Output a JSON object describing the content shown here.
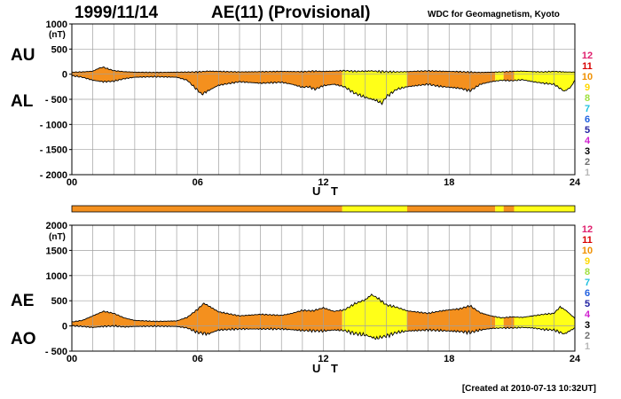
{
  "header": {
    "date": "1999/11/14",
    "title": "AE(11) (Provisional)",
    "institution": "WDC for Geomagnetism, Kyoto"
  },
  "footer": {
    "created": "[Created at 2010-07-13 10:32UT]"
  },
  "legend": [
    {
      "n": "12",
      "color": "#e0206e"
    },
    {
      "n": "11",
      "color": "#d80000"
    },
    {
      "n": "10",
      "color": "#f09000"
    },
    {
      "n": "9",
      "color": "#ffd800"
    },
    {
      "n": "8",
      "color": "#a0e040"
    },
    {
      "n": "7",
      "color": "#20c0e0"
    },
    {
      "n": "6",
      "color": "#2060e0"
    },
    {
      "n": "5",
      "color": "#2020a0"
    },
    {
      "n": "4",
      "color": "#d020d0"
    },
    {
      "n": "3",
      "color": "#000000"
    },
    {
      "n": "2",
      "color": "#707070"
    },
    {
      "n": "1",
      "color": "#b8b8b8"
    }
  ],
  "colors": {
    "orange": "#f4901e",
    "yellow": "#ffff18",
    "grid": "#a0a0a0",
    "line": "#000000"
  },
  "chart_data": [
    {
      "type": "area",
      "labels": {
        "upper": "AU",
        "lower": "AL"
      },
      "ylabel": "(nT)",
      "xlabel": "U T",
      "xlim": [
        0,
        24
      ],
      "ylim": [
        -2000,
        1000
      ],
      "yticks": [
        1000,
        500,
        0,
        -500,
        -1000,
        -1500,
        -2000
      ],
      "ytick_labels": [
        "1000",
        "500",
        "0",
        "- 500",
        "- 1000",
        "- 1500",
        "- 2000"
      ],
      "xticks": [
        0,
        6,
        12,
        18,
        24
      ],
      "xtick_labels": [
        "00",
        "06",
        "12",
        "18",
        "24"
      ],
      "grid": true,
      "series": [
        {
          "key": "AU",
          "x": [
            0,
            0.5,
            1,
            1.3,
            1.5,
            1.7,
            2,
            2.5,
            3,
            4,
            5,
            6,
            6.5,
            7,
            8,
            9,
            10,
            11,
            11.5,
            12,
            12.5,
            13,
            13.5,
            14,
            14.3,
            14.6,
            15,
            15.5,
            16,
            16.5,
            17,
            18,
            18.5,
            19,
            19.5,
            20,
            20.5,
            21,
            21.5,
            22,
            22.5,
            23,
            23.5,
            24
          ],
          "values": [
            40,
            45,
            60,
            120,
            140,
            110,
            70,
            50,
            40,
            35,
            40,
            45,
            60,
            55,
            45,
            50,
            55,
            50,
            60,
            55,
            60,
            70,
            55,
            60,
            65,
            55,
            50,
            45,
            50,
            60,
            65,
            55,
            50,
            40,
            35,
            40,
            45,
            55,
            60,
            50,
            45,
            55,
            45,
            40
          ]
        },
        {
          "key": "AL",
          "x": [
            0,
            0.5,
            1,
            1.5,
            2,
            2.5,
            3,
            4,
            5,
            5.5,
            6,
            6.2,
            6.5,
            7,
            8,
            9,
            10,
            10.5,
            11,
            11.3,
            11.6,
            12,
            12.5,
            13,
            13.5,
            14,
            14.5,
            14.8,
            15,
            15.5,
            16,
            17,
            17.5,
            18,
            18.5,
            19,
            19.5,
            20,
            20.5,
            21,
            21.5,
            22,
            22.5,
            23,
            23.5,
            23.8,
            24
          ],
          "values": [
            -30,
            -60,
            -120,
            -150,
            -140,
            -90,
            -60,
            -50,
            -60,
            -120,
            -320,
            -400,
            -330,
            -220,
            -150,
            -180,
            -160,
            -200,
            -260,
            -250,
            -300,
            -230,
            -200,
            -250,
            -380,
            -460,
            -520,
            -580,
            -450,
            -300,
            -250,
            -200,
            -240,
            -260,
            -280,
            -330,
            -200,
            -150,
            -120,
            -130,
            -110,
            -150,
            -180,
            -200,
            -340,
            -260,
            -120
          ]
        }
      ]
    },
    {
      "type": "area",
      "labels": {
        "upper": "AE",
        "lower": "AO"
      },
      "ylabel": "(nT)",
      "xlabel": "U T",
      "xlim": [
        0,
        24
      ],
      "ylim": [
        -500,
        2000
      ],
      "yticks": [
        2000,
        1500,
        1000,
        500,
        0,
        -500
      ],
      "ytick_labels": [
        "2000",
        "1500",
        "1000",
        "500",
        "0",
        "- 500"
      ],
      "xticks": [
        0,
        6,
        12,
        18,
        24
      ],
      "xtick_labels": [
        "00",
        "06",
        "12",
        "18",
        "24"
      ],
      "grid": true,
      "series": [
        {
          "key": "AE",
          "x": [
            0,
            0.5,
            1,
            1.5,
            2,
            2.5,
            3,
            4,
            5,
            5.5,
            6,
            6.3,
            6.6,
            7,
            8,
            9,
            10,
            10.5,
            11,
            11.5,
            12,
            12.5,
            13,
            13.5,
            14,
            14.3,
            14.6,
            15,
            15.5,
            16,
            17,
            17.5,
            18,
            18.5,
            19,
            19.5,
            20,
            20.5,
            21,
            21.5,
            22,
            22.5,
            23,
            23.3,
            23.6,
            24
          ],
          "values": [
            80,
            110,
            200,
            290,
            250,
            160,
            110,
            90,
            100,
            170,
            330,
            450,
            380,
            280,
            200,
            230,
            210,
            250,
            310,
            300,
            360,
            290,
            320,
            440,
            520,
            620,
            550,
            420,
            370,
            300,
            250,
            290,
            320,
            340,
            400,
            260,
            200,
            160,
            180,
            170,
            200,
            230,
            250,
            380,
            300,
            150
          ]
        },
        {
          "key": "AO",
          "x": [
            0,
            0.5,
            1,
            1.5,
            2,
            2.5,
            3,
            4,
            5,
            5.5,
            6,
            6.5,
            7,
            8,
            9,
            10,
            11,
            12,
            12.5,
            13,
            13.5,
            14,
            14.5,
            15,
            15.5,
            16,
            17,
            18,
            18.5,
            19,
            19.5,
            20,
            20.5,
            21,
            21.5,
            22,
            22.5,
            23,
            23.5,
            24
          ],
          "values": [
            5,
            -10,
            -30,
            -10,
            0,
            -20,
            -10,
            -5,
            -10,
            -40,
            -130,
            -160,
            -80,
            -60,
            -60,
            -60,
            -90,
            -100,
            -80,
            -90,
            -150,
            -180,
            -250,
            -200,
            -130,
            -100,
            -80,
            -100,
            -110,
            -130,
            -80,
            -50,
            -40,
            -40,
            -30,
            -40,
            -70,
            -80,
            -160,
            -40
          ]
        }
      ],
      "activity_bar": {
        "colors": [
          "#f4901e",
          "#ffff18",
          "#f4901e",
          "#ffff18",
          "#f4901e",
          "#ffff18"
        ],
        "bounds": [
          0,
          12.9,
          16.0,
          20.2,
          20.6,
          21.1,
          24
        ]
      }
    }
  ]
}
